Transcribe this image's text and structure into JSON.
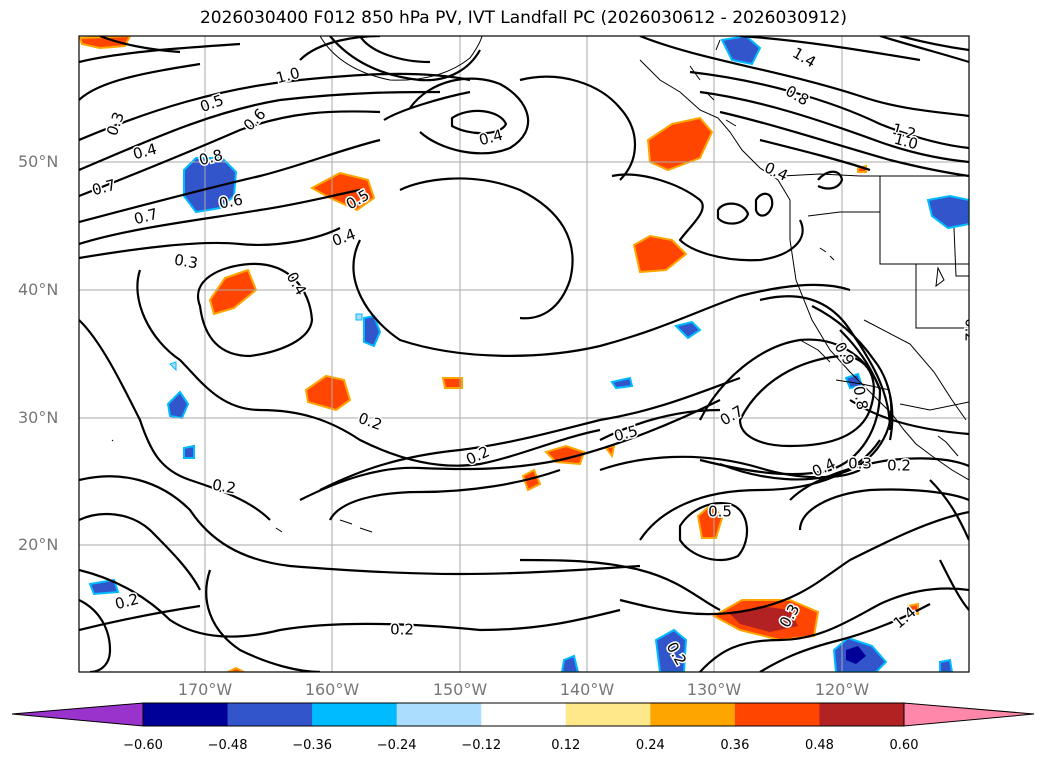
{
  "title": "2026030400 F012 850 hPa PV, IVT Landfall PC (2026030612 - 2026030912)",
  "lat_labels": [
    "50°N",
    "40°N",
    "30°N",
    "20°N"
  ],
  "lon_labels": [
    "170°W",
    "160°W",
    "150°W",
    "140°W",
    "130°W",
    "120°W"
  ],
  "contour_labels": [
    "1.0",
    "0.5",
    "0.6",
    "0.3",
    "0.4",
    "0.7",
    "0.8",
    "0.6",
    "0.7",
    "0.3",
    "0.4",
    "0.5",
    "0.4",
    "0.4",
    "1.4",
    "0.8",
    "1.2",
    "1.0",
    "0.4",
    "0.2",
    "0.2",
    "0.2",
    "0.2",
    "0.5",
    "0.7",
    "0.9",
    "0.8",
    "0.4",
    "0.3",
    "0.2",
    "0.5",
    "0.2",
    "0.2",
    "0.3",
    "0.2",
    "1.4"
  ],
  "colorbar": {
    "ticks": [
      "−0.60",
      "−0.48",
      "−0.36",
      "−0.24",
      "−0.12",
      "0.12",
      "0.24",
      "0.36",
      "0.48",
      "0.60"
    ],
    "colors": [
      "#9933cc",
      "#000099",
      "#3355cc",
      "#00bbff",
      "#aaddff",
      "#ffffff",
      "#ffe88a",
      "#ffa500",
      "#ff4500",
      "#b22222",
      "#ff88aa"
    ]
  }
}
